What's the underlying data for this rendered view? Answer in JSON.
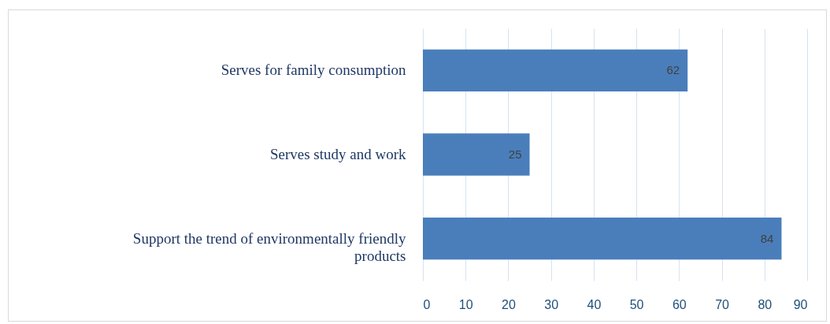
{
  "chart_data": {
    "type": "bar",
    "orientation": "horizontal",
    "categories": [
      "Serves for family consumption",
      "Serves study and work",
      "Support the trend of environmentally friendly products"
    ],
    "values": [
      62,
      25,
      84
    ],
    "color": "#4a7ebb",
    "xlim": [
      0,
      90
    ],
    "xticks": [
      0,
      10,
      20,
      30,
      40,
      50,
      60,
      70,
      80,
      90
    ],
    "grid": "x",
    "data_labels": true
  }
}
